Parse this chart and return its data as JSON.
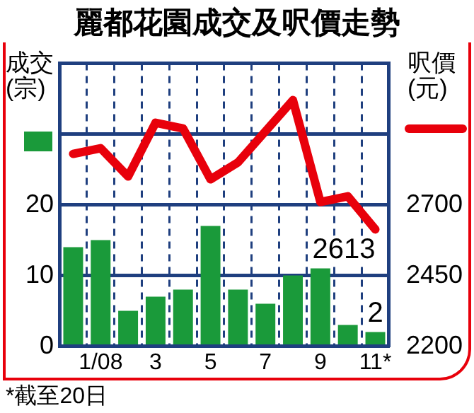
{
  "chart_data": {
    "type": "bar",
    "title": "麗都花園成交及呎價走勢",
    "ylabel": "成交(宗)",
    "y2label": "呎價(元)",
    "categories": [
      null,
      "1/08",
      null,
      "3",
      null,
      "5",
      null,
      "7",
      null,
      "9",
      null,
      "11*"
    ],
    "series": [
      {
        "color": "#1a9a3a",
        "values": [
          14,
          15,
          5,
          7,
          8,
          17,
          8,
          6,
          10,
          11,
          3,
          2
        ],
        "value_labels": [
          null,
          null,
          null,
          null,
          null,
          null,
          null,
          null,
          null,
          null,
          null,
          "2"
        ]
      },
      {
        "type": "line",
        "axis": "y2",
        "color": "#e8000b",
        "values": [
          2880,
          2900,
          2800,
          2990,
          2970,
          2790,
          2850,
          2960,
          3070,
          2710,
          2730,
          2613
        ],
        "value_labels": [
          null,
          null,
          null,
          null,
          null,
          null,
          null,
          null,
          null,
          null,
          null,
          "2613"
        ]
      }
    ],
    "ylim": [
      0,
      40
    ],
    "yticks": [
      0,
      10,
      20,
      {
        "value": 30,
        "label": null
      },
      {
        "value": 40,
        "label": null
      }
    ],
    "y2lim": [
      2200,
      3200
    ],
    "y2ticks": [
      2200,
      2450,
      2700
    ],
    "grid": true,
    "marker": "none",
    "annotations": [
      "*截至20日"
    ]
  }
}
